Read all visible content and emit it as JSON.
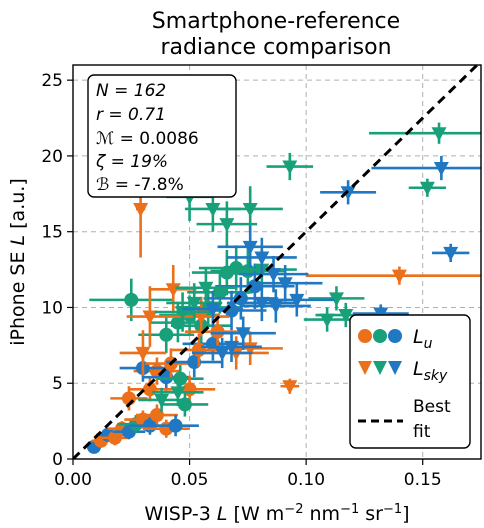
{
  "chart_data": {
    "type": "scatter",
    "title_lines": [
      "Smartphone-reference",
      "radiance comparison"
    ],
    "xlabel": "WISP-3 L [W m−2 nm−1 sr−1]",
    "ylabel": "iPhone SE L [a.u.]",
    "xlim": [
      0.0,
      0.175
    ],
    "ylim": [
      0,
      26
    ],
    "xticks": [
      0.0,
      0.05,
      0.1,
      0.15
    ],
    "xtick_labels": [
      "0.00",
      "0.05",
      "0.10",
      "0.15"
    ],
    "yticks": [
      0,
      5,
      10,
      15,
      20,
      25
    ],
    "ytick_labels": [
      "0",
      "5",
      "10",
      "15",
      "20",
      "25"
    ],
    "grid": true,
    "stats_box": [
      "N = 162",
      "r = 0.71",
      "ℳ = 0.0086",
      "ζ = 19%",
      "ℬ = -7.8%"
    ],
    "legend": {
      "placement": "right",
      "entries": [
        "Lu",
        "Lsky",
        "Best fit"
      ]
    },
    "best_fit": {
      "slope": 150,
      "intercept": 0,
      "style": "dashed",
      "color": "#000000"
    },
    "colors": {
      "orange": "#ec6f1a",
      "green": "#18a07a",
      "blue": "#1f78c1"
    },
    "series": [
      {
        "name": "Lu",
        "marker": "circle",
        "points": [
          {
            "x": 0.009,
            "y": 0.8,
            "xe": 0.003,
            "ye": 0.3,
            "c": "blue"
          },
          {
            "x": 0.012,
            "y": 1.2,
            "xe": 0.004,
            "ye": 0.4,
            "c": "orange"
          },
          {
            "x": 0.015,
            "y": 1.6,
            "xe": 0.005,
            "ye": 0.4,
            "c": "blue"
          },
          {
            "x": 0.018,
            "y": 1.4,
            "xe": 0.006,
            "ye": 0.5,
            "c": "orange"
          },
          {
            "x": 0.021,
            "y": 2.0,
            "xe": 0.006,
            "ye": 0.5,
            "c": "orange"
          },
          {
            "x": 0.024,
            "y": 1.8,
            "xe": 0.007,
            "ye": 0.5,
            "c": "blue"
          },
          {
            "x": 0.027,
            "y": 2.3,
            "xe": 0.008,
            "ye": 0.6,
            "c": "green"
          },
          {
            "x": 0.03,
            "y": 2.6,
            "xe": 0.008,
            "ye": 0.6,
            "c": "orange"
          },
          {
            "x": 0.033,
            "y": 2.2,
            "xe": 0.009,
            "ye": 0.6,
            "c": "blue"
          },
          {
            "x": 0.036,
            "y": 2.9,
            "xe": 0.009,
            "ye": 0.7,
            "c": "orange"
          },
          {
            "x": 0.04,
            "y": 2.0,
            "xe": 0.01,
            "ye": 0.6,
            "c": "orange"
          },
          {
            "x": 0.044,
            "y": 2.2,
            "xe": 0.01,
            "ye": 0.7,
            "c": "blue"
          },
          {
            "x": 0.024,
            "y": 4.0,
            "xe": 0.008,
            "ye": 0.8,
            "c": "orange"
          },
          {
            "x": 0.033,
            "y": 4.6,
            "xe": 0.009,
            "ye": 0.8,
            "c": "orange"
          },
          {
            "x": 0.036,
            "y": 5.8,
            "xe": 0.01,
            "ye": 0.9,
            "c": "orange"
          },
          {
            "x": 0.03,
            "y": 6.0,
            "xe": 0.01,
            "ye": 0.9,
            "c": "blue"
          },
          {
            "x": 0.04,
            "y": 5.4,
            "xe": 0.01,
            "ye": 0.9,
            "c": "blue"
          },
          {
            "x": 0.042,
            "y": 6.3,
            "xe": 0.011,
            "ye": 1.0,
            "c": "orange"
          },
          {
            "x": 0.046,
            "y": 5.3,
            "xe": 0.01,
            "ye": 0.9,
            "c": "green"
          },
          {
            "x": 0.05,
            "y": 4.6,
            "xe": 0.011,
            "ye": 0.9,
            "c": "orange"
          },
          {
            "x": 0.052,
            "y": 6.4,
            "xe": 0.012,
            "ye": 1.0,
            "c": "blue"
          },
          {
            "x": 0.048,
            "y": 3.6,
            "xe": 0.01,
            "ye": 0.8,
            "c": "green"
          },
          {
            "x": 0.04,
            "y": 8.2,
            "xe": 0.012,
            "ye": 1.2,
            "c": "green"
          },
          {
            "x": 0.045,
            "y": 9.0,
            "xe": 0.012,
            "ye": 1.3,
            "c": "green"
          },
          {
            "x": 0.05,
            "y": 9.5,
            "xe": 0.013,
            "ye": 1.3,
            "c": "green"
          },
          {
            "x": 0.055,
            "y": 8.8,
            "xe": 0.013,
            "ye": 1.2,
            "c": "green"
          },
          {
            "x": 0.058,
            "y": 10.0,
            "xe": 0.014,
            "ye": 1.3,
            "c": "green"
          },
          {
            "x": 0.06,
            "y": 7.6,
            "xe": 0.013,
            "ye": 1.1,
            "c": "blue"
          },
          {
            "x": 0.063,
            "y": 11.0,
            "xe": 0.014,
            "ye": 1.4,
            "c": "green"
          },
          {
            "x": 0.066,
            "y": 12.3,
            "xe": 0.015,
            "ye": 1.5,
            "c": "green"
          },
          {
            "x": 0.07,
            "y": 12.6,
            "xe": 0.016,
            "ye": 1.5,
            "c": "green"
          },
          {
            "x": 0.075,
            "y": 12.4,
            "xe": 0.016,
            "ye": 1.5,
            "c": "green"
          },
          {
            "x": 0.068,
            "y": 9.8,
            "xe": 0.015,
            "ye": 1.3,
            "c": "blue"
          },
          {
            "x": 0.072,
            "y": 10.6,
            "xe": 0.016,
            "ye": 1.4,
            "c": "blue"
          },
          {
            "x": 0.078,
            "y": 11.4,
            "xe": 0.017,
            "ye": 1.5,
            "c": "blue"
          },
          {
            "x": 0.025,
            "y": 10.5,
            "xe": 0.018,
            "ye": 1.4,
            "c": "green"
          },
          {
            "x": 0.062,
            "y": 8.4,
            "xe": 0.014,
            "ye": 1.2,
            "c": "orange"
          },
          {
            "x": 0.054,
            "y": 7.2,
            "xe": 0.012,
            "ye": 1.1,
            "c": "orange"
          }
        ]
      },
      {
        "name": "Lsky",
        "marker": "triangle_down",
        "points": [
          {
            "x": 0.029,
            "y": 16.5,
            "xe": 0.002,
            "ye": 3.2,
            "c": "orange"
          },
          {
            "x": 0.033,
            "y": 9.4,
            "xe": 0.01,
            "ye": 2.0,
            "c": "orange"
          },
          {
            "x": 0.03,
            "y": 7.0,
            "xe": 0.01,
            "ye": 1.5,
            "c": "orange"
          },
          {
            "x": 0.043,
            "y": 11.2,
            "xe": 0.01,
            "ye": 1.6,
            "c": "orange"
          },
          {
            "x": 0.055,
            "y": 9.4,
            "xe": 0.012,
            "ye": 1.3,
            "c": "orange"
          },
          {
            "x": 0.07,
            "y": 7.0,
            "xe": 0.014,
            "ye": 1.1,
            "c": "orange"
          },
          {
            "x": 0.076,
            "y": 7.3,
            "xe": 0.014,
            "ye": 1.1,
            "c": "orange"
          },
          {
            "x": 0.093,
            "y": 4.8,
            "xe": 0.004,
            "ye": 0.5,
            "c": "orange"
          },
          {
            "x": 0.14,
            "y": 12.1,
            "xe": 0.04,
            "ye": 0.6,
            "c": "orange"
          },
          {
            "x": 0.05,
            "y": 17.3,
            "xe": 0.01,
            "ye": 1.6,
            "c": "green"
          },
          {
            "x": 0.06,
            "y": 16.5,
            "xe": 0.012,
            "ye": 1.5,
            "c": "green"
          },
          {
            "x": 0.066,
            "y": 15.5,
            "xe": 0.013,
            "ye": 1.5,
            "c": "green"
          },
          {
            "x": 0.076,
            "y": 16.5,
            "xe": 0.014,
            "ye": 1.5,
            "c": "green"
          },
          {
            "x": 0.081,
            "y": 12.5,
            "xe": 0.015,
            "ye": 1.3,
            "c": "green"
          },
          {
            "x": 0.093,
            "y": 19.3,
            "xe": 0.01,
            "ye": 0.9,
            "c": "green"
          },
          {
            "x": 0.113,
            "y": 10.6,
            "xe": 0.012,
            "ye": 0.8,
            "c": "green"
          },
          {
            "x": 0.117,
            "y": 9.5,
            "xe": 0.013,
            "ye": 0.8,
            "c": "green"
          },
          {
            "x": 0.157,
            "y": 21.5,
            "xe": 0.03,
            "ye": 0.7,
            "c": "green"
          },
          {
            "x": 0.152,
            "y": 17.9,
            "xe": 0.008,
            "ye": 0.6,
            "c": "green"
          },
          {
            "x": 0.109,
            "y": 9.2,
            "xe": 0.01,
            "ye": 0.8,
            "c": "green"
          },
          {
            "x": 0.047,
            "y": 9.7,
            "xe": 0.012,
            "ye": 1.3,
            "c": "green"
          },
          {
            "x": 0.052,
            "y": 10.3,
            "xe": 0.012,
            "ye": 1.3,
            "c": "green"
          },
          {
            "x": 0.057,
            "y": 11.3,
            "xe": 0.013,
            "ye": 1.3,
            "c": "green"
          },
          {
            "x": 0.038,
            "y": 3.9,
            "xe": 0.01,
            "ye": 0.8,
            "c": "green"
          },
          {
            "x": 0.045,
            "y": 4.4,
            "xe": 0.011,
            "ye": 0.9,
            "c": "green"
          },
          {
            "x": 0.076,
            "y": 14.0,
            "xe": 0.014,
            "ye": 1.4,
            "c": "blue"
          },
          {
            "x": 0.081,
            "y": 13.3,
            "xe": 0.015,
            "ye": 1.3,
            "c": "blue"
          },
          {
            "x": 0.086,
            "y": 12.2,
            "xe": 0.015,
            "ye": 1.2,
            "c": "blue"
          },
          {
            "x": 0.091,
            "y": 11.6,
            "xe": 0.016,
            "ye": 1.2,
            "c": "blue"
          },
          {
            "x": 0.081,
            "y": 10.3,
            "xe": 0.015,
            "ye": 1.2,
            "c": "blue"
          },
          {
            "x": 0.087,
            "y": 10.1,
            "xe": 0.015,
            "ye": 1.1,
            "c": "blue"
          },
          {
            "x": 0.096,
            "y": 10.5,
            "xe": 0.016,
            "ye": 1.1,
            "c": "blue"
          },
          {
            "x": 0.068,
            "y": 7.4,
            "xe": 0.013,
            "ye": 1.0,
            "c": "blue"
          },
          {
            "x": 0.073,
            "y": 8.3,
            "xe": 0.014,
            "ye": 1.1,
            "c": "blue"
          },
          {
            "x": 0.064,
            "y": 7.0,
            "xe": 0.013,
            "ye": 1.0,
            "c": "blue"
          },
          {
            "x": 0.118,
            "y": 17.6,
            "xe": 0.012,
            "ye": 0.8,
            "c": "blue"
          },
          {
            "x": 0.158,
            "y": 19.2,
            "xe": 0.03,
            "ye": 0.8,
            "c": "blue"
          },
          {
            "x": 0.162,
            "y": 13.6,
            "xe": 0.008,
            "ye": 0.6,
            "c": "blue"
          },
          {
            "x": 0.132,
            "y": 9.6,
            "xe": 0.012,
            "ye": 0.6,
            "c": "blue"
          },
          {
            "x": 0.06,
            "y": 9.9,
            "xe": 0.013,
            "ye": 1.2,
            "c": "blue"
          }
        ]
      }
    ]
  }
}
